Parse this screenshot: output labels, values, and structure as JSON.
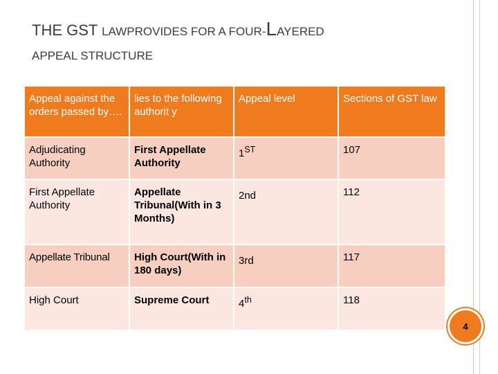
{
  "title": {
    "line1_parts": [
      "The ",
      "GST ",
      "lawprovides for a four-",
      "L",
      "ayered"
    ],
    "line2": "appeal structure"
  },
  "table": {
    "headers": [
      "Appeal against the orders passed by….",
      "lies to the following authorit y",
      "Appeal level",
      "Sections of GST law"
    ],
    "rows": [
      {
        "authority": "Adjudicating Authority",
        "lies_to": "First Appellate Authority",
        "level_base": "1",
        "level_sup": "ST",
        "section": "107"
      },
      {
        "authority": "First Appellate Authority",
        "lies_to": "Appellate Tribunal(With in 3 Months)",
        "level_base": "2nd",
        "level_sup": "",
        "section": "112"
      },
      {
        "authority": "Appellate Tribunal",
        "lies_to": "High Court(With in 180 days)",
        "level_base": "3rd",
        "level_sup": "",
        "section": "117"
      },
      {
        "authority": "High Court",
        "lies_to": "Supreme Court",
        "level_base": "4",
        "level_sup": "th",
        "section": "118"
      }
    ]
  },
  "slide_number": "4",
  "colors": {
    "header_bg": "#f07a1e",
    "row_dark": "#f7cfc0",
    "row_light": "#fbe7e0",
    "title_text": "#3b3b3b"
  }
}
